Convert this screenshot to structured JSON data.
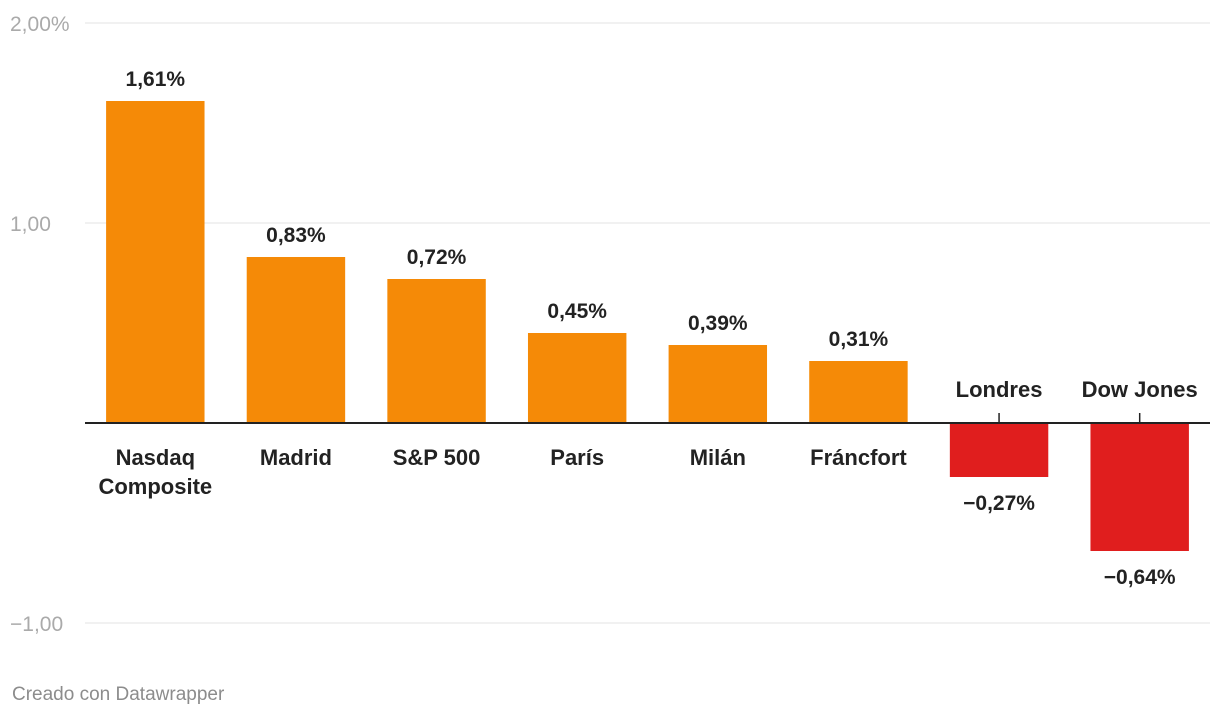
{
  "chart_data": {
    "type": "bar",
    "categories": [
      "Nasdaq\nComposite",
      "Madrid",
      "S&P 500",
      "París",
      "Milán",
      "Fráncfort",
      "Londres",
      "Dow Jones"
    ],
    "values": [
      1.61,
      0.83,
      0.72,
      0.45,
      0.39,
      0.31,
      -0.27,
      -0.64
    ],
    "value_labels": [
      "1,61%",
      "0,83%",
      "0,72%",
      "0,45%",
      "0,39%",
      "0,31%",
      "−0,27%",
      "−0,64%"
    ],
    "y_ticks": [
      2,
      1,
      -1
    ],
    "y_tick_labels": [
      "2,00%",
      "1,00",
      "−1,00"
    ],
    "ylim": [
      -1,
      2
    ],
    "grid": true,
    "colors": {
      "positive": "#f58a07",
      "negative": "#e01e1e"
    }
  },
  "footer": {
    "credit": "Creado con Datawrapper"
  }
}
